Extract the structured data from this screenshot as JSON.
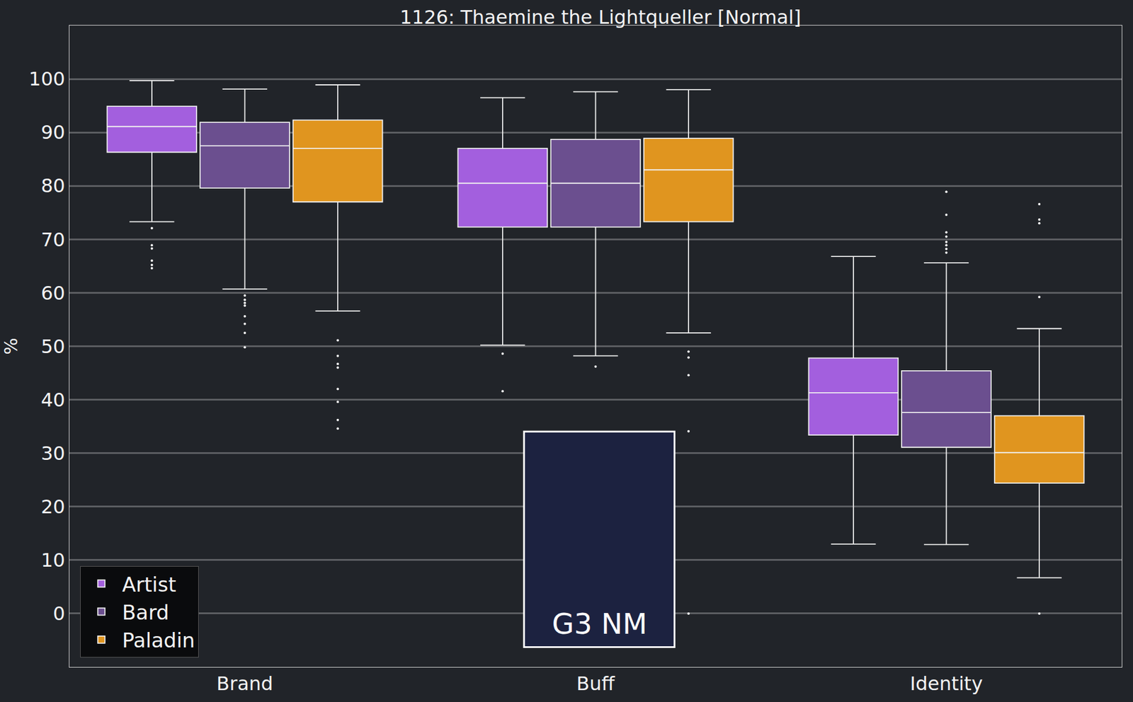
{
  "chart_data": {
    "type": "box",
    "title": "1126: Thaemine the Lightqueller [Normal]",
    "y_label": "%",
    "categories": [
      "Brand",
      "Buff",
      "Identity"
    ],
    "series": [
      {
        "name": "Artist",
        "color": "#a35fde",
        "upperfence": [
          99.7,
          96.5,
          66.8
        ],
        "q3": [
          94.9,
          87.0,
          47.8
        ],
        "median": [
          91.1,
          80.5,
          41.3
        ],
        "q1": [
          86.3,
          72.3,
          33.4
        ],
        "lowerfence": [
          73.3,
          50.2,
          13.0
        ],
        "outliers": [
          [
            72.1,
            68.9,
            68.3,
            66.0,
            65.2,
            64.6
          ],
          [
            48.6,
            41.6
          ],
          []
        ]
      },
      {
        "name": "Bard",
        "color": "#6b4f8f",
        "upperfence": [
          98.1,
          97.6,
          65.6
        ],
        "q3": [
          91.9,
          88.7,
          45.4
        ],
        "median": [
          87.5,
          80.5,
          37.6
        ],
        "q1": [
          79.6,
          72.3,
          31.1
        ],
        "lowerfence": [
          60.7,
          48.2,
          12.9
        ],
        "outliers": [
          [
            59.5,
            58.7,
            58.1,
            57.6,
            55.6,
            54.2,
            52.5,
            49.8
          ],
          [
            46.2
          ],
          [
            78.9,
            74.6,
            71.3,
            70.5,
            69.5,
            68.9,
            68.2,
            67.5
          ]
        ]
      },
      {
        "name": "Paladin",
        "color": "#e0951f",
        "upperfence": [
          98.9,
          98.0,
          53.3
        ],
        "q3": [
          92.3,
          88.9,
          37.0
        ],
        "median": [
          87.0,
          83.0,
          30.1
        ],
        "q1": [
          77.0,
          73.3,
          24.4
        ],
        "lowerfence": [
          56.6,
          52.5,
          6.7
        ],
        "outliers": [
          [
            51.1,
            48.2,
            46.7,
            46.0,
            42.0,
            39.6,
            36.2,
            34.6
          ],
          [
            49.0,
            47.9,
            44.6,
            34.1,
            0
          ],
          [
            76.6,
            73.7,
            73.0,
            59.2,
            0
          ]
        ]
      }
    ],
    "ylim": [
      -10,
      110
    ],
    "yticks": [
      0,
      10,
      20,
      30,
      40,
      50,
      60,
      70,
      80,
      90,
      100
    ],
    "grid": true,
    "legend": "lower left",
    "annotations": [
      "G3 NM"
    ]
  }
}
